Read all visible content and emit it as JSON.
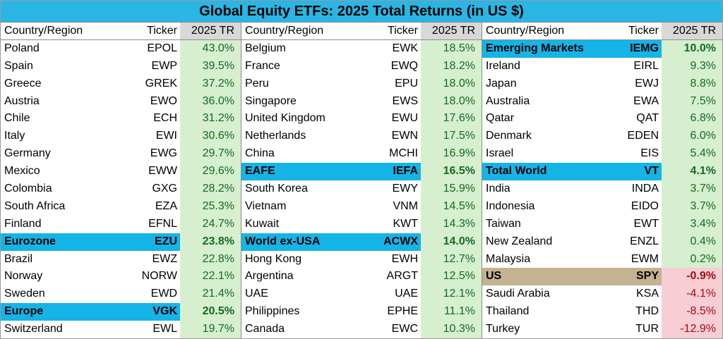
{
  "title": "Global Equity ETFs: 2025 Total Returns (in US $)",
  "columns": {
    "country": "Country/Region",
    "ticker": "Ticker",
    "tr": "2025 TR"
  },
  "colors": {
    "title_bg": "#29b6e4",
    "highlight": "#15b4e7",
    "us_highlight": "#c4b290",
    "positive_fill": "#d6efce",
    "positive_text": "#116c1e",
    "negative_fill": "#f8cdd3",
    "negative_text": "#9d0c12"
  },
  "chart_data": {
    "type": "table",
    "title": "Global Equity ETFs: 2025 Total Returns (in US $)",
    "columns": [
      "Country/Region",
      "Ticker",
      "2025 TR"
    ],
    "panels": [
      [
        {
          "country": "Poland",
          "ticker": "EPOL",
          "tr": "43.0%",
          "value": 43.0,
          "hl": ""
        },
        {
          "country": "Spain",
          "ticker": "EWP",
          "tr": "39.5%",
          "value": 39.5,
          "hl": ""
        },
        {
          "country": "Greece",
          "ticker": "GREK",
          "tr": "37.2%",
          "value": 37.2,
          "hl": ""
        },
        {
          "country": "Austria",
          "ticker": "EWO",
          "tr": "36.0%",
          "value": 36.0,
          "hl": ""
        },
        {
          "country": "Chile",
          "ticker": "ECH",
          "tr": "31.2%",
          "value": 31.2,
          "hl": ""
        },
        {
          "country": "Italy",
          "ticker": "EWI",
          "tr": "30.6%",
          "value": 30.6,
          "hl": ""
        },
        {
          "country": "Germany",
          "ticker": "EWG",
          "tr": "29.7%",
          "value": 29.7,
          "hl": ""
        },
        {
          "country": "Mexico",
          "ticker": "EWW",
          "tr": "29.6%",
          "value": 29.6,
          "hl": ""
        },
        {
          "country": "Colombia",
          "ticker": "GXG",
          "tr": "28.2%",
          "value": 28.2,
          "hl": ""
        },
        {
          "country": "South Africa",
          "ticker": "EZA",
          "tr": "25.3%",
          "value": 25.3,
          "hl": ""
        },
        {
          "country": "Finland",
          "ticker": "EFNL",
          "tr": "24.7%",
          "value": 24.7,
          "hl": ""
        },
        {
          "country": "Eurozone",
          "ticker": "EZU",
          "tr": "23.8%",
          "value": 23.8,
          "hl": "blue"
        },
        {
          "country": "Brazil",
          "ticker": "EWZ",
          "tr": "22.8%",
          "value": 22.8,
          "hl": ""
        },
        {
          "country": "Norway",
          "ticker": "NORW",
          "tr": "22.1%",
          "value": 22.1,
          "hl": ""
        },
        {
          "country": "Sweden",
          "ticker": "EWD",
          "tr": "21.4%",
          "value": 21.4,
          "hl": ""
        },
        {
          "country": "Europe",
          "ticker": "VGK",
          "tr": "20.5%",
          "value": 20.5,
          "hl": "blue"
        },
        {
          "country": "Switzerland",
          "ticker": "EWL",
          "tr": "19.7%",
          "value": 19.7,
          "hl": ""
        }
      ],
      [
        {
          "country": "Belgium",
          "ticker": "EWK",
          "tr": "18.5%",
          "value": 18.5,
          "hl": ""
        },
        {
          "country": "France",
          "ticker": "EWQ",
          "tr": "18.2%",
          "value": 18.2,
          "hl": ""
        },
        {
          "country": "Peru",
          "ticker": "EPU",
          "tr": "18.0%",
          "value": 18.0,
          "hl": ""
        },
        {
          "country": "Singapore",
          "ticker": "EWS",
          "tr": "18.0%",
          "value": 18.0,
          "hl": ""
        },
        {
          "country": "United Kingdom",
          "ticker": "EWU",
          "tr": "17.6%",
          "value": 17.6,
          "hl": ""
        },
        {
          "country": "Netherlands",
          "ticker": "EWN",
          "tr": "17.5%",
          "value": 17.5,
          "hl": ""
        },
        {
          "country": "China",
          "ticker": "MCHI",
          "tr": "16.9%",
          "value": 16.9,
          "hl": ""
        },
        {
          "country": "EAFE",
          "ticker": "IEFA",
          "tr": "16.5%",
          "value": 16.5,
          "hl": "blue"
        },
        {
          "country": "South Korea",
          "ticker": "EWY",
          "tr": "15.9%",
          "value": 15.9,
          "hl": ""
        },
        {
          "country": "Vietnam",
          "ticker": "VNM",
          "tr": "14.5%",
          "value": 14.5,
          "hl": ""
        },
        {
          "country": "Kuwait",
          "ticker": "KWT",
          "tr": "14.3%",
          "value": 14.3,
          "hl": ""
        },
        {
          "country": "World ex-USA",
          "ticker": "ACWX",
          "tr": "14.0%",
          "value": 14.0,
          "hl": "blue"
        },
        {
          "country": "Hong Kong",
          "ticker": "EWH",
          "tr": "12.7%",
          "value": 12.7,
          "hl": ""
        },
        {
          "country": "Argentina",
          "ticker": "ARGT",
          "tr": "12.5%",
          "value": 12.5,
          "hl": ""
        },
        {
          "country": "UAE",
          "ticker": "UAE",
          "tr": "12.1%",
          "value": 12.1,
          "hl": ""
        },
        {
          "country": "Philippines",
          "ticker": "EPHE",
          "tr": "11.1%",
          "value": 11.1,
          "hl": ""
        },
        {
          "country": "Canada",
          "ticker": "EWC",
          "tr": "10.3%",
          "value": 10.3,
          "hl": ""
        }
      ],
      [
        {
          "country": "Emerging Markets",
          "ticker": "IEMG",
          "tr": "10.0%",
          "value": 10.0,
          "hl": "blue"
        },
        {
          "country": "Ireland",
          "ticker": "EIRL",
          "tr": "9.3%",
          "value": 9.3,
          "hl": ""
        },
        {
          "country": "Japan",
          "ticker": "EWJ",
          "tr": "8.8%",
          "value": 8.8,
          "hl": ""
        },
        {
          "country": "Australia",
          "ticker": "EWA",
          "tr": "7.5%",
          "value": 7.5,
          "hl": ""
        },
        {
          "country": "Qatar",
          "ticker": "QAT",
          "tr": "6.8%",
          "value": 6.8,
          "hl": ""
        },
        {
          "country": "Denmark",
          "ticker": "EDEN",
          "tr": "6.0%",
          "value": 6.0,
          "hl": ""
        },
        {
          "country": "Israel",
          "ticker": "EIS",
          "tr": "5.4%",
          "value": 5.4,
          "hl": ""
        },
        {
          "country": "Total World",
          "ticker": "VT",
          "tr": "4.1%",
          "value": 4.1,
          "hl": "blue"
        },
        {
          "country": "India",
          "ticker": "INDA",
          "tr": "3.7%",
          "value": 3.7,
          "hl": ""
        },
        {
          "country": "Indonesia",
          "ticker": "EIDO",
          "tr": "3.7%",
          "value": 3.7,
          "hl": ""
        },
        {
          "country": "Taiwan",
          "ticker": "EWT",
          "tr": "3.4%",
          "value": 3.4,
          "hl": ""
        },
        {
          "country": "New Zealand",
          "ticker": "ENZL",
          "tr": "0.4%",
          "value": 0.4,
          "hl": ""
        },
        {
          "country": "Malaysia",
          "ticker": "EWM",
          "tr": "0.2%",
          "value": 0.2,
          "hl": ""
        },
        {
          "country": "US",
          "ticker": "SPY",
          "tr": "-0.9%",
          "value": -0.9,
          "hl": "us"
        },
        {
          "country": "Saudi Arabia",
          "ticker": "KSA",
          "tr": "-4.1%",
          "value": -4.1,
          "hl": ""
        },
        {
          "country": "Thailand",
          "ticker": "THD",
          "tr": "-8.5%",
          "value": -8.5,
          "hl": ""
        },
        {
          "country": "Turkey",
          "ticker": "TUR",
          "tr": "-12.9%",
          "value": -12.9,
          "hl": ""
        }
      ]
    ]
  }
}
